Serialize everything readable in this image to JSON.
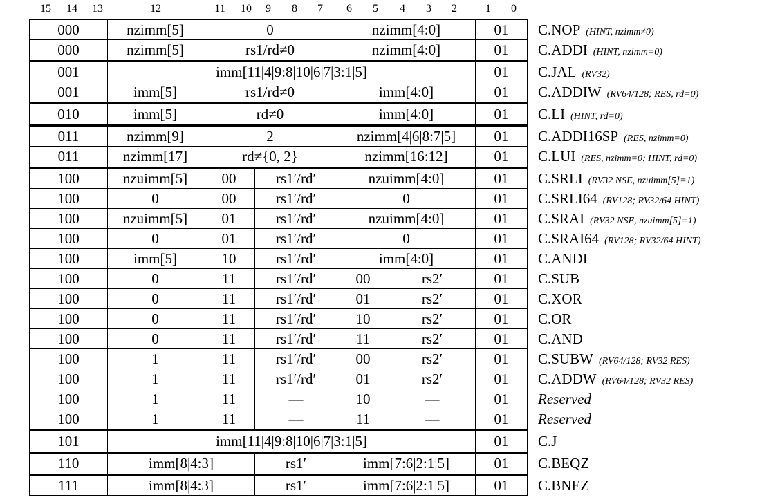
{
  "header": {
    "bits": [
      "15",
      "14",
      "13",
      "12",
      "11",
      "10",
      "9",
      "8",
      "7",
      "6",
      "5",
      "4",
      "3",
      "2",
      "1",
      "0"
    ]
  },
  "groups": [
    {
      "rows": [
        {
          "opcode": "000",
          "fields": [
            "nzimm[5]",
            "0",
            "nzimm[4:0]"
          ],
          "op": "01",
          "name": "C.NOP",
          "note": "(HINT, nzimm≠0)"
        },
        {
          "opcode": "000",
          "fields": [
            "nzimm[5]",
            "rs1/rd≠0",
            "nzimm[4:0]"
          ],
          "op": "01",
          "name": "C.ADDI",
          "note": "(HINT, nzimm=0)"
        }
      ]
    },
    {
      "rows": [
        {
          "opcode": "001",
          "fields": [
            "imm[11|4|9:8|10|6|7|3:1|5]"
          ],
          "op": "01",
          "name": "C.JAL",
          "note": "(RV32)"
        },
        {
          "opcode": "001",
          "fields": [
            "imm[5]",
            "rs1/rd≠0",
            "imm[4:0]"
          ],
          "op": "01",
          "name": "C.ADDIW",
          "note": "(RV64/128; RES, rd=0)"
        }
      ]
    },
    {
      "rows": [
        {
          "opcode": "010",
          "fields": [
            "imm[5]",
            "rd≠0",
            "imm[4:0]"
          ],
          "op": "01",
          "name": "C.LI",
          "note": "(HINT, rd=0)"
        }
      ]
    },
    {
      "rows": [
        {
          "opcode": "011",
          "fields": [
            "nzimm[9]",
            "2",
            "nzimm[4|6|8:7|5]"
          ],
          "op": "01",
          "name": "C.ADDI16SP",
          "note": "(RES, nzimm=0)"
        },
        {
          "opcode": "011",
          "fields": [
            "nzimm[17]",
            "rd≠{0, 2}",
            "nzimm[16:12]"
          ],
          "op": "01",
          "name": "C.LUI",
          "note": "(RES, nzimm=0; HINT, rd=0)"
        }
      ]
    },
    {
      "rows": [
        {
          "opcode": "100",
          "fields": [
            "nzuimm[5]",
            "00",
            "rs1′/rd′",
            "nzuimm[4:0]"
          ],
          "op": "01",
          "name": "C.SRLI",
          "note": "(RV32 NSE, nzuimm[5]=1)"
        },
        {
          "opcode": "100",
          "fields": [
            "0",
            "00",
            "rs1′/rd′",
            "0"
          ],
          "op": "01",
          "name": "C.SRLI64",
          "note": "(RV128; RV32/64 HINT)"
        },
        {
          "opcode": "100",
          "fields": [
            "nzuimm[5]",
            "01",
            "rs1′/rd′",
            "nzuimm[4:0]"
          ],
          "op": "01",
          "name": "C.SRAI",
          "note": "(RV32 NSE, nzuimm[5]=1)"
        },
        {
          "opcode": "100",
          "fields": [
            "0",
            "01",
            "rs1′/rd′",
            "0"
          ],
          "op": "01",
          "name": "C.SRAI64",
          "note": "(RV128; RV32/64 HINT)"
        },
        {
          "opcode": "100",
          "fields": [
            "imm[5]",
            "10",
            "rs1′/rd′",
            "imm[4:0]"
          ],
          "op": "01",
          "name": "C.ANDI"
        },
        {
          "opcode": "100",
          "fields": [
            "0",
            "11",
            "rs1′/rd′",
            "00",
            "rs2′"
          ],
          "op": "01",
          "name": "C.SUB"
        },
        {
          "opcode": "100",
          "fields": [
            "0",
            "11",
            "rs1′/rd′",
            "01",
            "rs2′"
          ],
          "op": "01",
          "name": "C.XOR"
        },
        {
          "opcode": "100",
          "fields": [
            "0",
            "11",
            "rs1′/rd′",
            "10",
            "rs2′"
          ],
          "op": "01",
          "name": "C.OR"
        },
        {
          "opcode": "100",
          "fields": [
            "0",
            "11",
            "rs1′/rd′",
            "11",
            "rs2′"
          ],
          "op": "01",
          "name": "C.AND"
        },
        {
          "opcode": "100",
          "fields": [
            "1",
            "11",
            "rs1′/rd′",
            "00",
            "rs2′"
          ],
          "op": "01",
          "name": "C.SUBW",
          "note": "(RV64/128; RV32 RES)"
        },
        {
          "opcode": "100",
          "fields": [
            "1",
            "11",
            "rs1′/rd′",
            "01",
            "rs2′"
          ],
          "op": "01",
          "name": "C.ADDW",
          "note": "(RV64/128; RV32 RES)"
        },
        {
          "opcode": "100",
          "fields": [
            "1",
            "11",
            "—",
            "10",
            "—"
          ],
          "op": "01",
          "name": "Reserved",
          "italic": true
        },
        {
          "opcode": "100",
          "fields": [
            "1",
            "11",
            "—",
            "11",
            "—"
          ],
          "op": "01",
          "name": "Reserved",
          "italic": true
        }
      ]
    },
    {
      "rows": [
        {
          "opcode": "101",
          "fields": [
            "imm[11|4|9:8|10|6|7|3:1|5]"
          ],
          "op": "01",
          "name": "C.J"
        }
      ]
    },
    {
      "rows": [
        {
          "opcode": "110",
          "fields": [
            "imm[8|4:3]",
            "rs1′",
            "imm[7:6|2:1|5]"
          ],
          "op": "01",
          "name": "C.BEQZ"
        }
      ]
    },
    {
      "rows": [
        {
          "opcode": "111",
          "fields": [
            "imm[8|4:3]",
            "rs1′",
            "imm[7:6|2:1|5]"
          ],
          "op": "01",
          "name": "C.BNEZ"
        }
      ]
    }
  ]
}
